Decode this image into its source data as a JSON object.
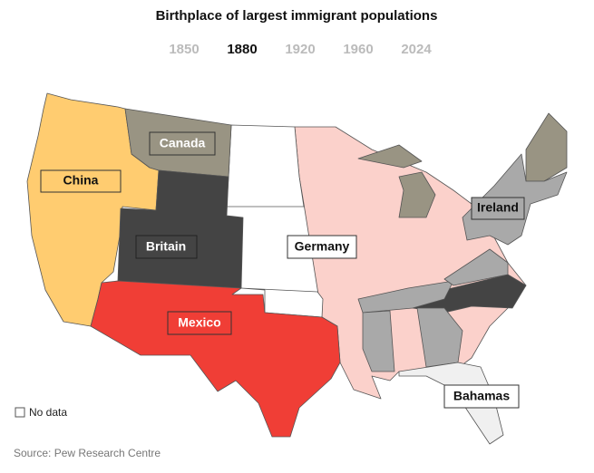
{
  "title": "Birthplace of largest immigrant populations",
  "tabs": [
    {
      "label": "1850",
      "selected": false
    },
    {
      "label": "1880",
      "selected": true
    },
    {
      "label": "1920",
      "selected": false
    },
    {
      "label": "1960",
      "selected": false
    },
    {
      "label": "2024",
      "selected": false
    }
  ],
  "regions": [
    {
      "label": "China",
      "color": "#ffcc70"
    },
    {
      "label": "Canada",
      "color": "#999483"
    },
    {
      "label": "Britain",
      "color": "#444444"
    },
    {
      "label": "Germany",
      "color": "#fbd1cb"
    },
    {
      "label": "Mexico",
      "color": "#f03e36"
    },
    {
      "label": "Ireland",
      "color": "#a9a9a9"
    },
    {
      "label": "Bahamas",
      "color": "#f0f0f0"
    }
  ],
  "legend": {
    "label": "No data"
  },
  "source": "Source: Pew Research Centre"
}
